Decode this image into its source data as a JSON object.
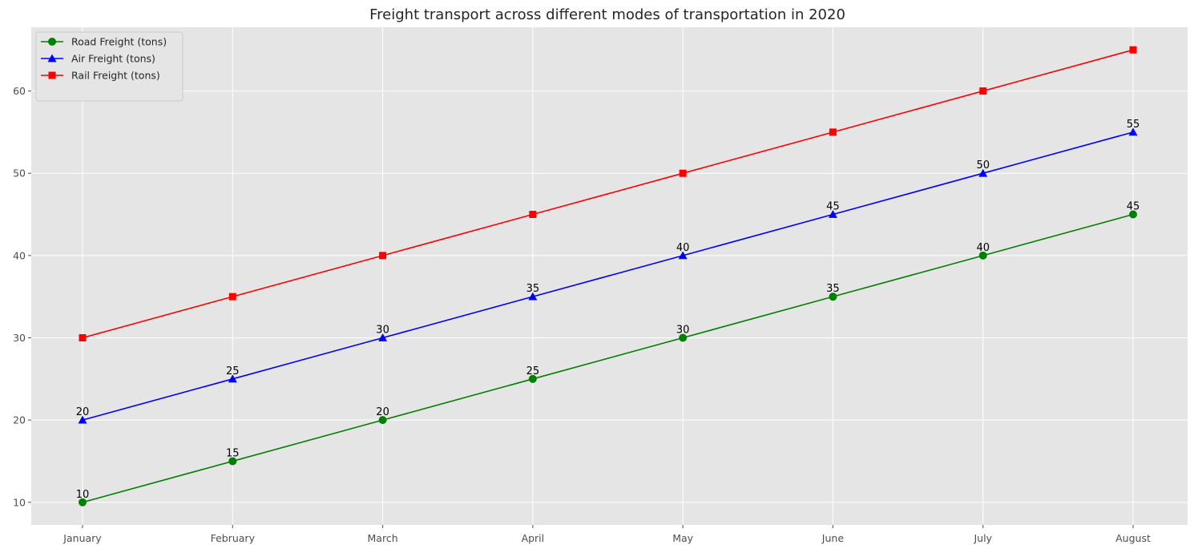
{
  "chart_data": {
    "type": "line",
    "title": "Freight transport across different modes of transportation in 2020",
    "xlabel": "",
    "ylabel": "",
    "categories": [
      "January",
      "February",
      "March",
      "April",
      "May",
      "June",
      "July",
      "August"
    ],
    "ylim": [
      7.25,
      67.75
    ],
    "yticks": [
      10,
      20,
      30,
      40,
      50,
      60
    ],
    "grid": true,
    "legend_position": "top-left",
    "colors": {
      "background": "#e5e5e5",
      "grid": "#ffffff"
    },
    "series": [
      {
        "name": "Road Freight (tons)",
        "color": "#008000",
        "marker": "circle",
        "values": [
          10,
          15,
          20,
          25,
          30,
          35,
          40,
          45
        ],
        "labeled": true
      },
      {
        "name": "Air Freight (tons)",
        "color": "#0000ff",
        "marker": "triangle",
        "values": [
          20,
          25,
          30,
          35,
          40,
          45,
          50,
          55
        ],
        "labeled": true
      },
      {
        "name": "Rail Freight (tons)",
        "color": "#ff0000",
        "marker": "square",
        "values": [
          30,
          35,
          40,
          45,
          50,
          55,
          60,
          65
        ],
        "labeled": false
      }
    ]
  }
}
